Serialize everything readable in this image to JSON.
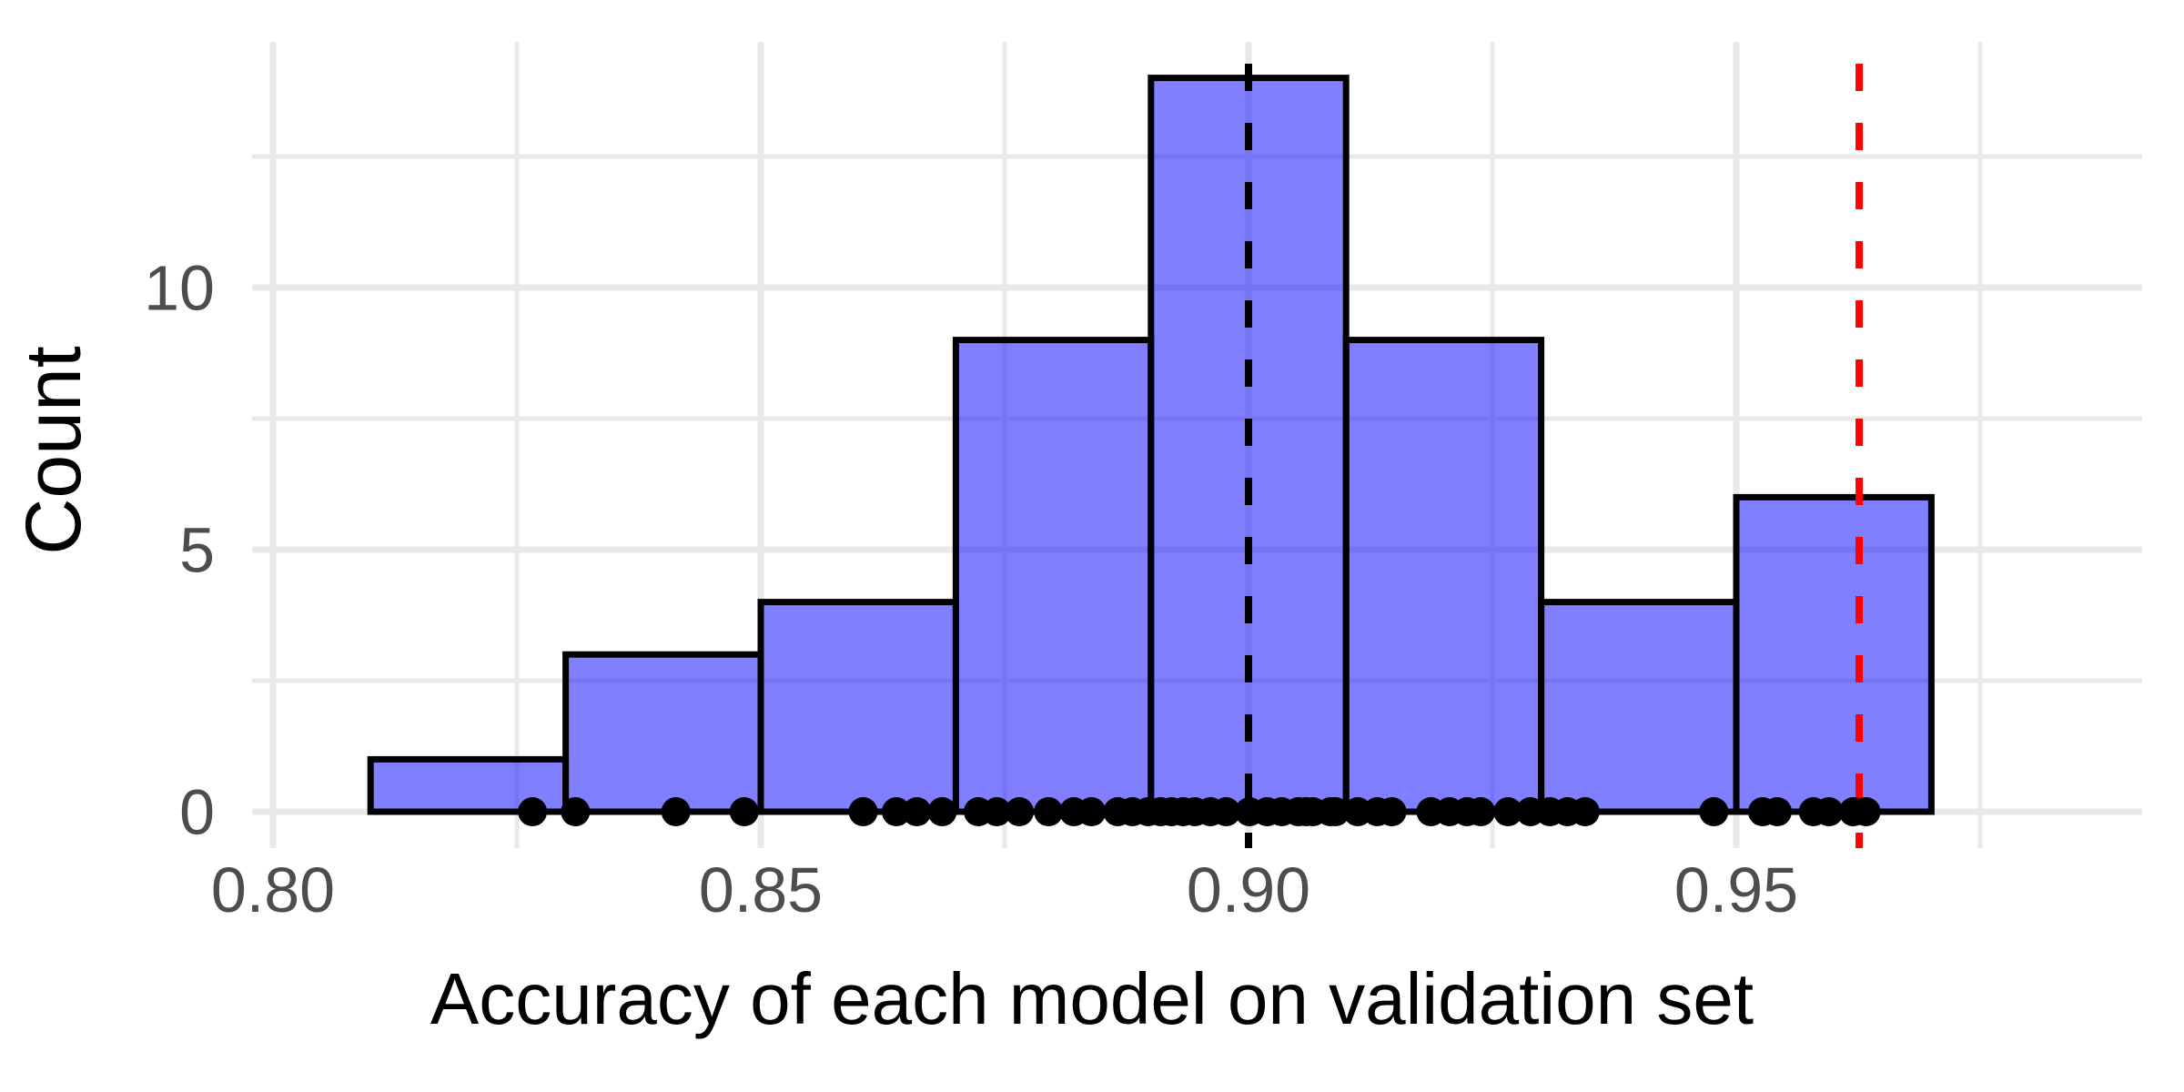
{
  "chart_data": {
    "type": "histogram",
    "title": "",
    "xlabel": "Accuracy of each model on validation set",
    "ylabel": "Count",
    "xlim": [
      0.7978545,
      0.9916045
    ],
    "ylim": [
      -0.6944,
      14.6875
    ],
    "grid": true,
    "legend_position": "none",
    "x_tick_values": [
      0.8,
      0.85,
      0.9,
      0.95
    ],
    "x_tick_labels": [
      "0.80",
      "0.85",
      "0.90",
      "0.95"
    ],
    "x_minor_tick_values": [
      0.825,
      0.875,
      0.925,
      0.975
    ],
    "y_tick_values": [
      0,
      5,
      10
    ],
    "y_tick_labels": [
      "0",
      "5",
      "10"
    ],
    "y_minor_tick_values": [
      2.5,
      7.5,
      12.5
    ],
    "bins": {
      "start": 0.81,
      "bin_width": 0.02,
      "counts": [
        1,
        3,
        4,
        9,
        14,
        9,
        4,
        6
      ]
    },
    "points": {
      "y": 0,
      "x": [
        0.8266,
        0.831,
        0.8413,
        0.8483,
        0.8605,
        0.8639,
        0.866,
        0.8686,
        0.8723,
        0.8742,
        0.8765,
        0.8795,
        0.8821,
        0.8839,
        0.8866,
        0.8881,
        0.8897,
        0.891,
        0.8921,
        0.8933,
        0.8945,
        0.8961,
        0.8977,
        0.9001,
        0.9019,
        0.9034,
        0.9051,
        0.9059,
        0.9066,
        0.9084,
        0.9089,
        0.9112,
        0.9132,
        0.9147,
        0.9187,
        0.9206,
        0.9224,
        0.9238,
        0.9266,
        0.9289,
        0.9309,
        0.9327,
        0.9345,
        0.9477,
        0.9527,
        0.9542,
        0.9579,
        0.9595,
        0.962,
        0.9633
      ]
    },
    "vlines": [
      {
        "x": 0.9,
        "color": "#000000",
        "style": "dashed",
        "name": "mean-accuracy-line"
      },
      {
        "x": 0.9626,
        "color": "#FF0000",
        "style": "dashed",
        "name": "reference-accuracy-line"
      }
    ],
    "colors": {
      "bar_fill": "#0000FF",
      "bar_fill_opacity": 0.5,
      "bar_border": "#000000",
      "grid_major": "#E9E9E9",
      "grid_minor": "#E9E9E9",
      "tick_label": "#4D4D4D",
      "axis_title": "#000000",
      "point": "#000000",
      "background": "#FFFFFF"
    }
  }
}
